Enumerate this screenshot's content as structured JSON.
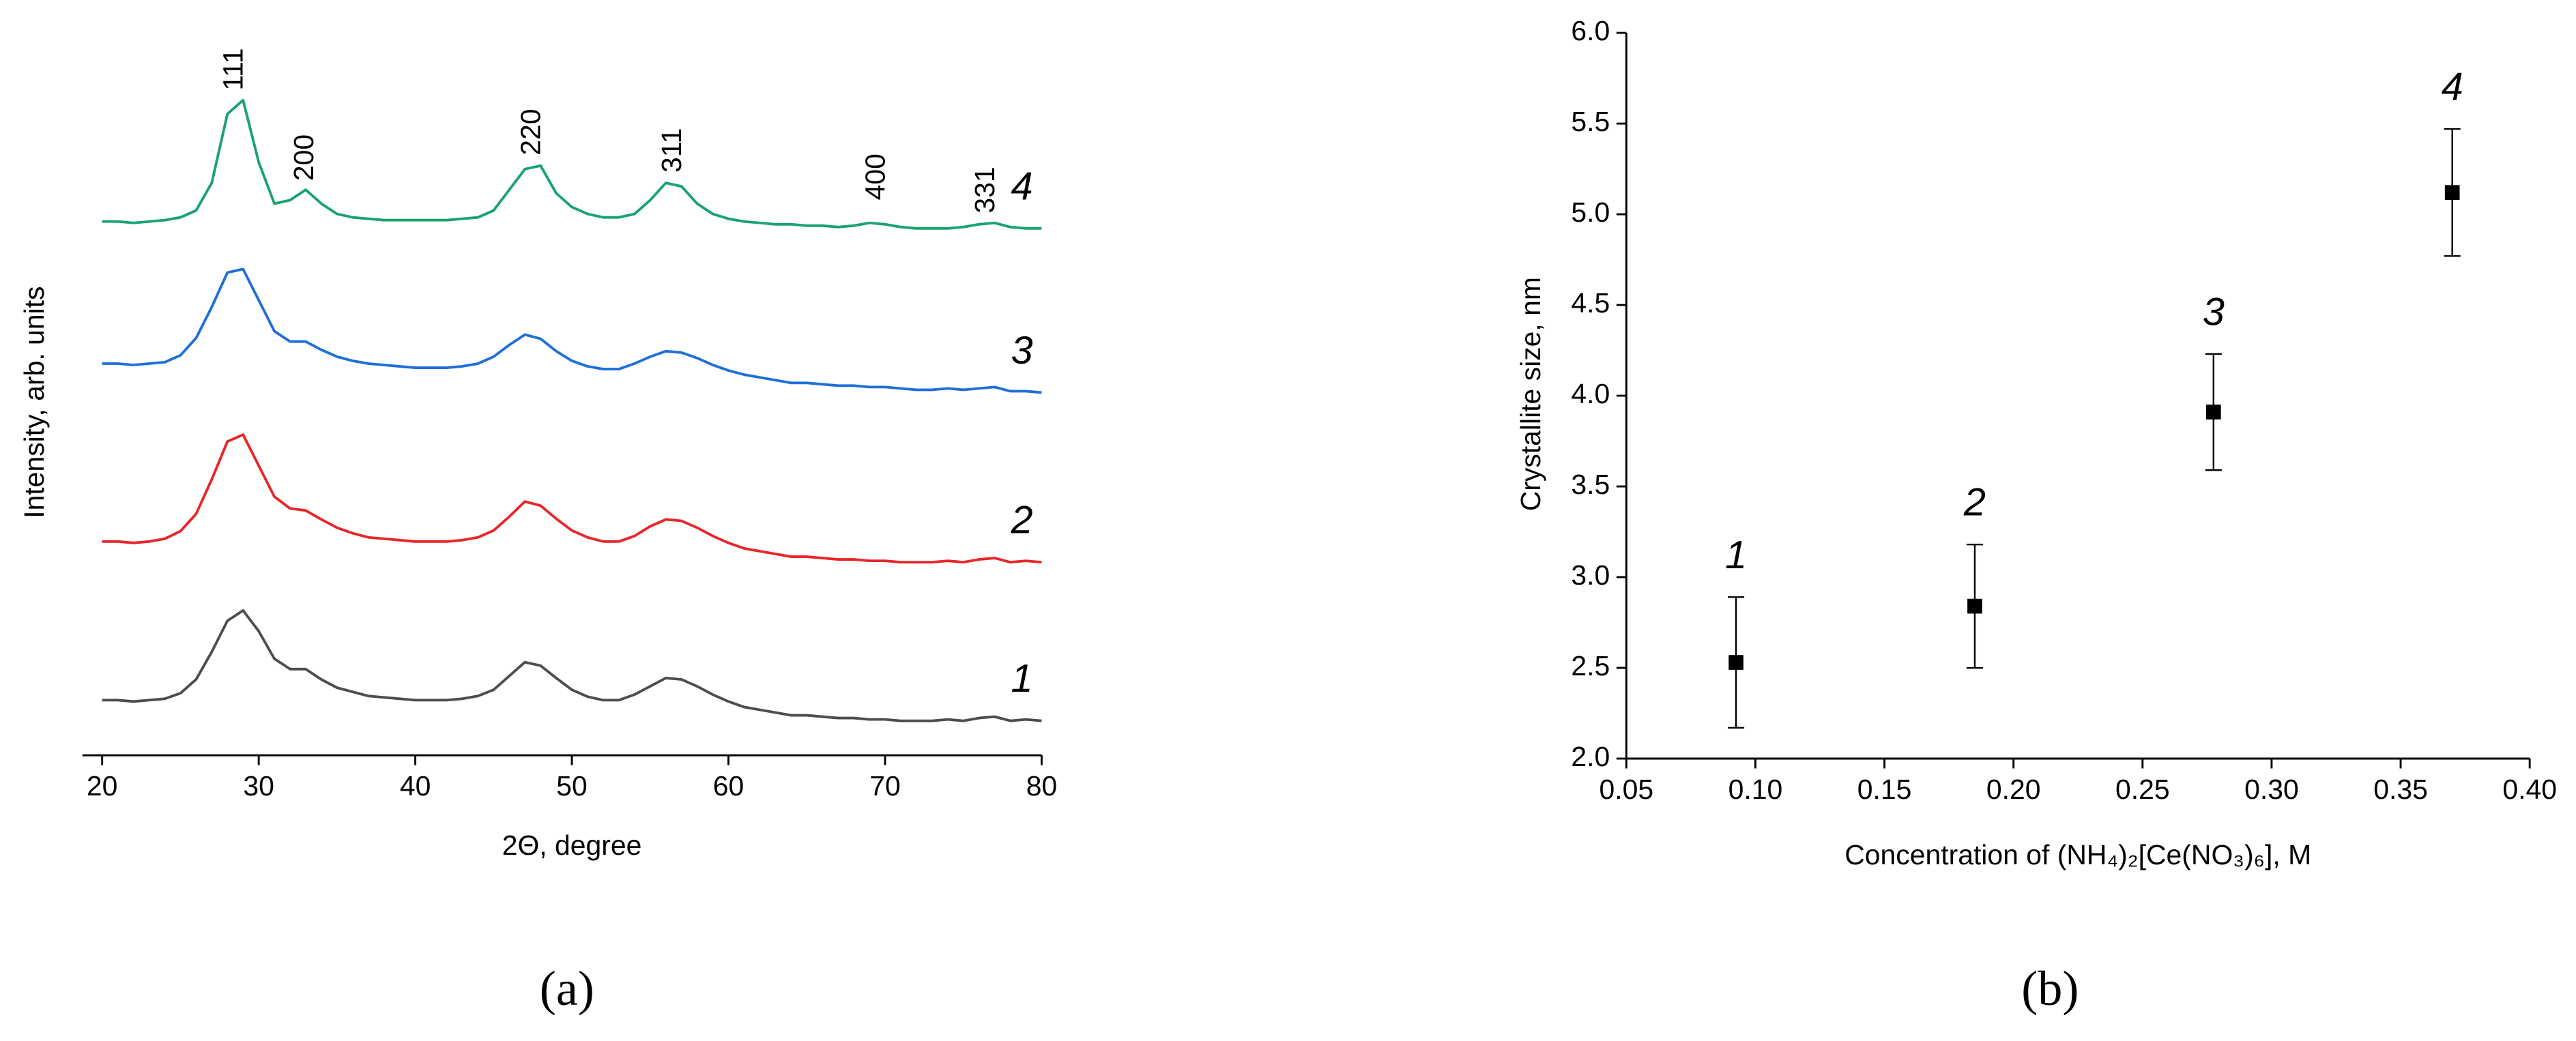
{
  "chart_data": [
    {
      "type": "line",
      "caption": "(a)",
      "xlabel": "2Θ, degree",
      "ylabel": "Intensity, arb. units",
      "xlim": [
        20,
        80
      ],
      "xticks": [
        20,
        30,
        40,
        50,
        60,
        70,
        80
      ],
      "ylim": [
        0,
        100
      ],
      "x": [
        20,
        21,
        22,
        23,
        24,
        25,
        26,
        27,
        28,
        29,
        30,
        31,
        32,
        33,
        34,
        35,
        36,
        37,
        38,
        39,
        40,
        41,
        42,
        43,
        44,
        45,
        46,
        47,
        48,
        49,
        50,
        51,
        52,
        53,
        54,
        55,
        56,
        57,
        58,
        59,
        60,
        61,
        62,
        63,
        64,
        65,
        66,
        67,
        68,
        69,
        70,
        71,
        72,
        73,
        74,
        75,
        76,
        77,
        78,
        79,
        80
      ],
      "series": [
        {
          "name": "1",
          "color": "#4d4d4d",
          "values": [
            8.0,
            8.0,
            7.8,
            8.0,
            8.2,
            9.0,
            11,
            15,
            19.5,
            21,
            18,
            14,
            12.5,
            12.5,
            11,
            9.8,
            9.2,
            8.6,
            8.4,
            8.2,
            8.0,
            8.0,
            8.0,
            8.2,
            8.6,
            9.5,
            11.5,
            13.5,
            13.0,
            11.2,
            9.5,
            8.5,
            8.0,
            8.0,
            8.8,
            10.0,
            11.2,
            11.0,
            10.0,
            8.8,
            7.8,
            7.0,
            6.6,
            6.2,
            5.8,
            5.8,
            5.6,
            5.4,
            5.4,
            5.2,
            5.2,
            5.0,
            5.0,
            5.0,
            5.2,
            5.0,
            5.4,
            5.6,
            5.0,
            5.2,
            5.0
          ]
        },
        {
          "name": "2",
          "color": "#e8262a",
          "values": [
            31.0,
            31.0,
            30.8,
            31.0,
            31.4,
            32.5,
            35,
            40,
            45.5,
            46.5,
            42,
            37.5,
            35.8,
            35.5,
            34.2,
            33,
            32.2,
            31.6,
            31.4,
            31.2,
            31.0,
            31.0,
            31.0,
            31.2,
            31.6,
            32.6,
            34.6,
            36.8,
            36.2,
            34.3,
            32.6,
            31.6,
            31.0,
            31.0,
            31.8,
            33.2,
            34.2,
            34.0,
            33.0,
            31.8,
            30.8,
            30.0,
            29.6,
            29.2,
            28.8,
            28.8,
            28.6,
            28.4,
            28.4,
            28.2,
            28.2,
            28.0,
            28.0,
            28.0,
            28.2,
            28.0,
            28.4,
            28.6,
            28.0,
            28.2,
            28.0
          ]
        },
        {
          "name": "3",
          "color": "#1f6fd9",
          "values": [
            56.8,
            56.8,
            56.6,
            56.8,
            57.0,
            58.0,
            60.5,
            65,
            70,
            70.5,
            66,
            61.5,
            60,
            60,
            58.8,
            57.8,
            57.2,
            56.8,
            56.6,
            56.4,
            56.2,
            56.2,
            56.2,
            56.4,
            56.8,
            57.8,
            59.5,
            61,
            60.4,
            58.6,
            57.2,
            56.4,
            56.0,
            56.0,
            56.8,
            57.8,
            58.6,
            58.4,
            57.6,
            56.6,
            55.8,
            55.2,
            54.8,
            54.4,
            54.0,
            54.0,
            53.8,
            53.6,
            53.6,
            53.4,
            53.4,
            53.2,
            53.0,
            53.0,
            53.2,
            53.0,
            53.2,
            53.4,
            52.8,
            52.8,
            52.6
          ]
        },
        {
          "name": "4",
          "color": "#1aa36f",
          "values": [
            77.4,
            77.4,
            77.2,
            77.4,
            77.6,
            78,
            79,
            83,
            93,
            95,
            86,
            80,
            80.5,
            82,
            80,
            78.5,
            78,
            77.8,
            77.6,
            77.6,
            77.6,
            77.6,
            77.6,
            77.8,
            78,
            79,
            82,
            85,
            85.5,
            81.5,
            79.5,
            78.5,
            78,
            78,
            78.5,
            80.5,
            83,
            82.5,
            80,
            78.5,
            77.8,
            77.4,
            77.2,
            77,
            77,
            76.8,
            76.8,
            76.6,
            76.8,
            77.2,
            77,
            76.6,
            76.4,
            76.4,
            76.4,
            76.6,
            77,
            77.2,
            76.6,
            76.4,
            76.4
          ]
        }
      ],
      "annotations": [
        {
          "text": "111",
          "x": 28.5,
          "y": 96.4
        },
        {
          "text": "200",
          "x": 33,
          "y": 83.3
        },
        {
          "text": "220",
          "x": 47.5,
          "y": 87
        },
        {
          "text": "311",
          "x": 56.5,
          "y": 84.5
        },
        {
          "text": "400",
          "x": 69.5,
          "y": 80.5
        },
        {
          "text": "331",
          "x": 76.5,
          "y": 78.6
        }
      ]
    },
    {
      "type": "scatter",
      "caption": "(b)",
      "xlabel": "Concentration of (NH₄)₂[Ce(NO₃)₆], M",
      "ylabel": "Crystallite size, nm",
      "xlim": [
        0.05,
        0.4
      ],
      "xticks": [
        0.05,
        {
          "value": 0.1,
          "label": "0.10"
        },
        0.15,
        {
          "value": 0.2,
          "label": "0.20"
        },
        0.25,
        {
          "value": 0.3,
          "label": "0.30"
        },
        0.35,
        {
          "value": 0.4,
          "label": "0.40"
        }
      ],
      "ylim": [
        2,
        6
      ],
      "yticks": [
        {
          "value": 2,
          "label": "2.0"
        },
        2.5,
        {
          "value": 3,
          "label": "3.0"
        },
        3.5,
        {
          "value": 4,
          "label": "4.0"
        },
        4.5,
        {
          "value": 5,
          "label": "5.0"
        },
        5.5,
        {
          "value": 6,
          "label": "6.0"
        }
      ],
      "x": [
        0.0925,
        0.185,
        0.2775,
        0.37
      ],
      "point_labels": [
        "1",
        "2",
        "3",
        "4"
      ],
      "series": [
        {
          "color": "#000000",
          "values": [
            2.53,
            2.84,
            3.91,
            5.12
          ],
          "errors": [
            0.36,
            0.34,
            0.32,
            0.35
          ]
        }
      ]
    }
  ]
}
